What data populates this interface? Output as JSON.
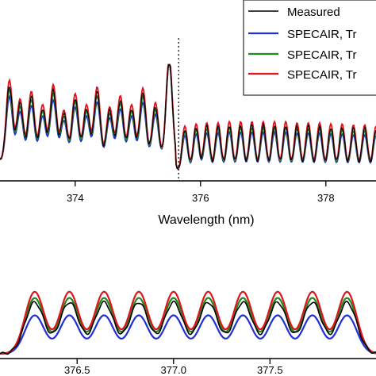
{
  "colors": {
    "measured": "#000000",
    "specair_1": "#1f2fd6",
    "specair_2": "#1f8a1f",
    "specair_3": "#e0141a",
    "axis": "#000000",
    "background": "#ffffff"
  },
  "chart_data": [
    {
      "type": "line",
      "title": "",
      "xlabel": "Wavelength (nm)",
      "ylabel": "",
      "xlim": [
        372.8,
        378.8
      ],
      "xticks": [
        374,
        376,
        378
      ],
      "xtick_labels": [
        "374",
        "376",
        "378"
      ],
      "grid": false,
      "legend": {
        "placement": "top-right",
        "entries": [
          "Measured",
          "SPECAIR, Tr",
          "SPECAIR, Tr",
          "SPECAIR, Tr"
        ]
      },
      "annotation": {
        "type": "vertical-dotted-line",
        "x": 375.65
      },
      "series": [
        {
          "name": "Measured",
          "color_key": "measured"
        },
        {
          "name": "SPECAIR, Tr",
          "color_key": "specair_1"
        },
        {
          "name": "SPECAIR, Tr",
          "color_key": "specair_2"
        },
        {
          "name": "SPECAIR, Tr",
          "color_key": "specair_3"
        }
      ],
      "peak_x_left": [
        372.95,
        373.12,
        373.3,
        373.48,
        373.65,
        373.82,
        374.0,
        374.18,
        374.35,
        374.55,
        374.72,
        374.9,
        375.08,
        375.28,
        375.5
      ],
      "peak_rel_left": [
        0.72,
        0.55,
        0.62,
        0.5,
        0.68,
        0.45,
        0.6,
        0.5,
        0.66,
        0.48,
        0.58,
        0.5,
        0.65,
        0.52,
        0.98
      ],
      "peak_x_right": [
        375.75,
        375.93,
        376.1,
        376.28,
        376.46,
        376.64,
        376.82,
        377.0,
        377.18,
        377.36,
        377.54,
        377.72,
        377.9,
        378.08,
        378.26,
        378.44,
        378.62,
        378.8
      ],
      "peak_rel_right": [
        0.42,
        0.44,
        0.45,
        0.45,
        0.46,
        0.46,
        0.46,
        0.46,
        0.46,
        0.46,
        0.45,
        0.45,
        0.45,
        0.44,
        0.44,
        0.43,
        0.43,
        0.42
      ],
      "series_peak_scale": [
        1.0,
        0.86,
        0.95,
        1.08
      ]
    },
    {
      "type": "line",
      "title": "",
      "xlabel": "",
      "ylabel": "",
      "xlim": [
        376.1,
        378.05
      ],
      "xticks": [
        376.5,
        377.0,
        377.5
      ],
      "xtick_labels": [
        "376.5",
        "377.0",
        "377.5"
      ],
      "grid": false,
      "peak_x": [
        376.28,
        376.46,
        376.64,
        376.82,
        377.0,
        377.18,
        377.36,
        377.54,
        377.72,
        377.9
      ],
      "series_peak_scale": [
        0.83,
        0.62,
        0.9,
        1.0
      ]
    }
  ]
}
